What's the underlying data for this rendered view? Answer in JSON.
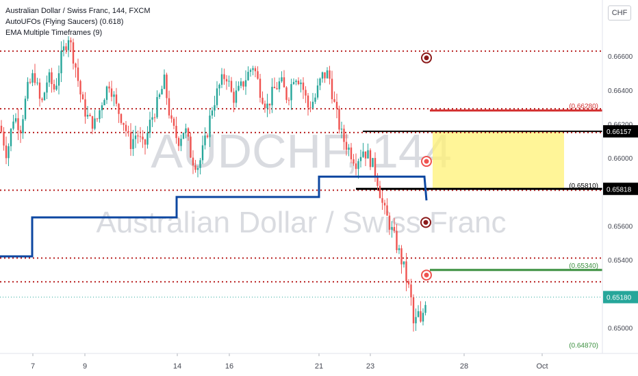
{
  "header": {
    "symbol_line": "Australian Dollar / Swiss Franc, 144, FXCM",
    "indicator_1": "AutoUFOs (Flying Saucers) (0.618)",
    "indicator_2": "EMA Multiple Timeframes (9)",
    "currency_button": "CHF"
  },
  "watermark": {
    "ticker": "AUDCHF, 144",
    "name": "Australian Dollar / Swiss Franc"
  },
  "colors": {
    "up": "#26a69a",
    "down": "#ef5350",
    "ema": "#0d47a1",
    "zone": "#fff176",
    "level": "#b71c1c",
    "resistance": "#d32f2f",
    "support": "#388e3c",
    "black": "#000000"
  },
  "chart_data": {
    "type": "candlestick",
    "x_ticks": [
      "7",
      "9",
      "14",
      "16",
      "21",
      "23",
      "28",
      "Oct"
    ],
    "y_ticks": [
      "0.66600",
      "0.66400",
      "0.66200",
      "0.66000",
      "0.65600",
      "0.65400",
      "0.65000"
    ],
    "ylim": [
      0.6486,
      0.6677
    ],
    "price_close_path": [
      [
        0,
        0.6619
      ],
      [
        10,
        0.6602
      ],
      [
        20,
        0.6625
      ],
      [
        30,
        0.6618
      ],
      [
        40,
        0.664
      ],
      [
        50,
        0.665
      ],
      [
        60,
        0.663
      ],
      [
        70,
        0.6648
      ],
      [
        80,
        0.664
      ],
      [
        90,
        0.666
      ],
      [
        100,
        0.6672
      ],
      [
        110,
        0.6655
      ],
      [
        120,
        0.6632
      ],
      [
        130,
        0.6622
      ],
      [
        140,
        0.662
      ],
      [
        150,
        0.6635
      ],
      [
        160,
        0.6645
      ],
      [
        170,
        0.663
      ],
      [
        180,
        0.6622
      ],
      [
        190,
        0.6608
      ],
      [
        200,
        0.6615
      ],
      [
        210,
        0.6605
      ],
      [
        220,
        0.6622
      ],
      [
        230,
        0.6632
      ],
      [
        240,
        0.6645
      ],
      [
        250,
        0.662
      ],
      [
        260,
        0.661
      ],
      [
        270,
        0.6618
      ],
      [
        280,
        0.66
      ],
      [
        290,
        0.6595
      ],
      [
        300,
        0.661
      ],
      [
        310,
        0.663
      ],
      [
        320,
        0.6642
      ],
      [
        330,
        0.665
      ],
      [
        340,
        0.6635
      ],
      [
        350,
        0.664
      ],
      [
        360,
        0.6648
      ],
      [
        370,
        0.6655
      ],
      [
        380,
        0.664
      ],
      [
        390,
        0.663
      ],
      [
        400,
        0.664
      ],
      [
        410,
        0.6645
      ],
      [
        420,
        0.6635
      ],
      [
        430,
        0.665
      ],
      [
        440,
        0.6645
      ],
      [
        450,
        0.663
      ],
      [
        460,
        0.6635
      ],
      [
        470,
        0.6648
      ],
      [
        480,
        0.665
      ],
      [
        490,
        0.6628
      ],
      [
        500,
        0.6612
      ],
      [
        510,
        0.6605
      ],
      [
        520,
        0.6598
      ],
      [
        530,
        0.6605
      ],
      [
        540,
        0.66
      ],
      [
        550,
        0.659
      ],
      [
        560,
        0.657
      ],
      [
        570,
        0.656
      ],
      [
        580,
        0.6548
      ],
      [
        590,
        0.6535
      ],
      [
        600,
        0.6518
      ],
      [
        605,
        0.6498
      ],
      [
        610,
        0.651
      ],
      [
        615,
        0.65
      ],
      [
        620,
        0.6515
      ],
      [
        623,
        0.6518
      ]
    ],
    "ema_steps": [
      [
        0,
        0.6542
      ],
      [
        47,
        0.6542
      ],
      [
        47,
        0.6565
      ],
      [
        258,
        0.6565
      ],
      [
        258,
        0.6577
      ],
      [
        466,
        0.6577
      ],
      [
        466,
        0.6589
      ],
      [
        620,
        0.6589
      ],
      [
        623,
        0.6575
      ]
    ],
    "horizontal_levels": [
      0.6663,
      0.6629,
      0.6615,
      0.6581,
      0.6541,
      0.6527
    ],
    "current_price": 0.6518,
    "zone": {
      "top": 0.66157,
      "bottom": 0.65818
    },
    "black_lines": [
      {
        "label": "0.66157",
        "value": 0.66157
      },
      {
        "label": "0.65818",
        "value": 0.65818
      }
    ],
    "annotations": [
      {
        "label": "(0.66280)",
        "value": 0.6628,
        "color": "resistance"
      },
      {
        "label": "(0.65810)",
        "value": 0.6581,
        "color": "black"
      },
      {
        "label": "(0.65340)",
        "value": 0.6534,
        "color": "support"
      },
      {
        "label": "(0.64870)",
        "value": 0.6487,
        "color": "support"
      }
    ],
    "price_tags": [
      {
        "label": "0.66157",
        "value": 0.66157,
        "bg": "#000000"
      },
      {
        "label": "0.65818",
        "value": 0.65818,
        "bg": "#000000"
      },
      {
        "label": "0.65180",
        "value": 0.6518,
        "bg": "#26a69a"
      }
    ],
    "ufo_markers": [
      0.6659,
      0.6598,
      0.6562,
      0.6531
    ]
  }
}
